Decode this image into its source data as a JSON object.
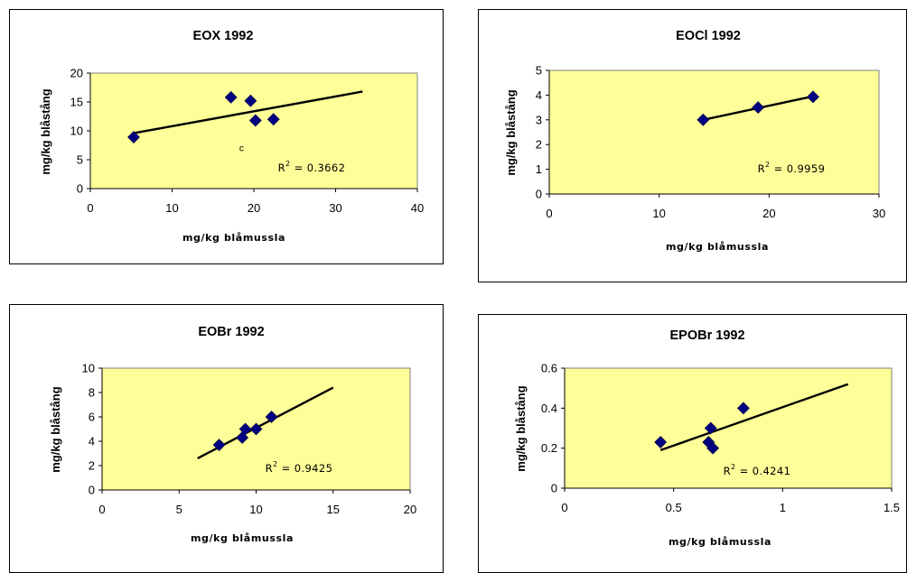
{
  "chart_data": [
    {
      "type": "scatter",
      "title": "EOX 1992",
      "xlabel": "mg/kg blåmussla",
      "ylabel": "mg/kg blåstång",
      "xlim": [
        0,
        40
      ],
      "ylim": [
        0,
        20
      ],
      "xticks": [
        "0",
        "10",
        "20",
        "30",
        "40"
      ],
      "yticks": [
        "0",
        "5",
        "10",
        "15",
        "20"
      ],
      "x": [
        5.3,
        17.2,
        19.6,
        20.2,
        22.4
      ],
      "y": [
        8.9,
        15.8,
        15.2,
        11.8,
        12.0
      ],
      "trendline": {
        "x": [
          5.3,
          33.3
        ],
        "y": [
          9.6,
          16.8
        ]
      },
      "r2_label": "R",
      "r2_value": " = 0.3662",
      "annotation": {
        "text": "c",
        "x": 18.5,
        "y": 6.5
      },
      "marker_color": "#000080",
      "plot_bg": "#FFFF99"
    },
    {
      "type": "scatter",
      "title": "EOCl 1992",
      "xlabel": "mg/kg blåmussla",
      "ylabel": "mg/kg blåstång",
      "xlim": [
        0,
        30
      ],
      "ylim": [
        0,
        5
      ],
      "xticks": [
        "0",
        "10",
        "20",
        "30"
      ],
      "yticks": [
        "0",
        "1",
        "2",
        "3",
        "4",
        "5"
      ],
      "x": [
        14,
        19,
        24
      ],
      "y": [
        3.0,
        3.5,
        3.93
      ],
      "trendline": {
        "x": [
          14,
          24
        ],
        "y": [
          3.0,
          3.95
        ]
      },
      "r2_label": "R",
      "r2_value": " = 0.9959",
      "marker_color": "#000080",
      "plot_bg": "#FFFF99"
    },
    {
      "type": "scatter",
      "title": "EOBr 1992",
      "xlabel": "mg/kg blåmussla",
      "ylabel": "mg/kg blåstång",
      "xlim": [
        0,
        20
      ],
      "ylim": [
        0,
        10
      ],
      "xticks": [
        "0",
        "5",
        "10",
        "15",
        "20"
      ],
      "yticks": [
        "0",
        "2",
        "4",
        "6",
        "8",
        "10"
      ],
      "x": [
        7.6,
        9.1,
        9.3,
        10.0,
        11.0
      ],
      "y": [
        3.7,
        4.3,
        5.0,
        5.0,
        6.0
      ],
      "trendline": {
        "x": [
          6.2,
          15.0
        ],
        "y": [
          2.6,
          8.4
        ]
      },
      "r2_label": "R",
      "r2_value": " = 0.9425",
      "marker_color": "#000080",
      "plot_bg": "#FFFF99"
    },
    {
      "type": "scatter",
      "title": "EPOBr 1992",
      "xlabel": "mg/kg blåmussla",
      "ylabel": "mg/kg blåstång",
      "xlim": [
        0,
        1.5
      ],
      "ylim": [
        0,
        0.6
      ],
      "xticks": [
        "0",
        "0.5",
        "1",
        "1.5"
      ],
      "yticks": [
        "0",
        "0.2",
        "0.4",
        "0.6"
      ],
      "x": [
        0.44,
        0.66,
        0.67,
        0.68,
        0.82
      ],
      "y": [
        0.23,
        0.23,
        0.3,
        0.2,
        0.4
      ],
      "trendline": {
        "x": [
          0.44,
          1.3
        ],
        "y": [
          0.19,
          0.52
        ]
      },
      "r2_label": "R",
      "r2_value": " = 0.4241",
      "marker_color": "#000080",
      "plot_bg": "#FFFF99"
    }
  ]
}
